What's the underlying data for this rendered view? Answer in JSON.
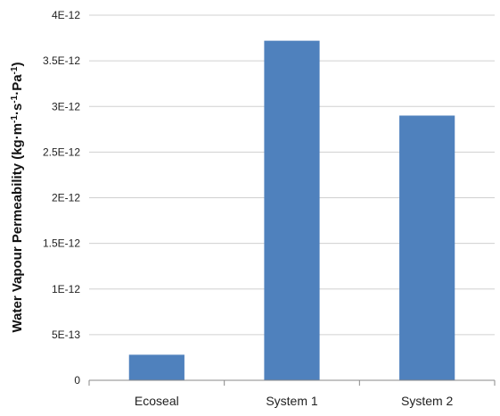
{
  "chart_data": {
    "type": "bar",
    "title": "",
    "xlabel": "",
    "ylabel_main": "Water Vapour Permeability (kg·m",
    "ylabel_sup1": "-1",
    "ylabel_mid1": "·s",
    "ylabel_sup2": "-1",
    "ylabel_mid2": "·Pa",
    "ylabel_sup3": "-1",
    "ylabel_end": ")",
    "categories": [
      "Ecoseal",
      "System 1",
      "System 2"
    ],
    "values": [
      2.8e-13,
      3.72e-12,
      2.9e-12
    ],
    "ylim": [
      0,
      4e-12
    ],
    "yticks": [
      0,
      5e-13,
      1e-12,
      1.5e-12,
      2e-12,
      2.5e-12,
      3e-12,
      3.5e-12,
      4e-12
    ],
    "ytick_labels": [
      "0",
      "5E-13",
      "1E-12",
      "1.5E-12",
      "2E-12",
      "2.5E-12",
      "3E-12",
      "3.5E-12",
      "4E-12"
    ],
    "bar_color": "#4f81bd",
    "grid": true,
    "legend": "none"
  }
}
